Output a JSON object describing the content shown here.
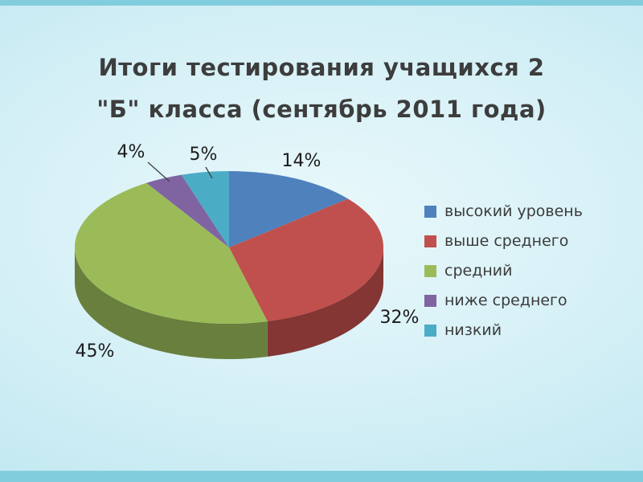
{
  "title": {
    "line1": "Итоги тестирования учащихся 2",
    "line2": "\"Б\" класса (сентябрь 2011 года)"
  },
  "chart_data": {
    "type": "pie",
    "style": "3d-pie",
    "title": "Итоги тестирования учащихся 2 \"Б\" класса (сентябрь 2011 года)",
    "labels": [
      "высокий уровень",
      "выше среднего",
      "средний",
      "ниже среднего",
      "низкий"
    ],
    "values": [
      14,
      32,
      45,
      4,
      5
    ],
    "data_labels": [
      "14%",
      "32%",
      "45%",
      "4%",
      "5%"
    ],
    "colors": [
      "#4F81BD",
      "#C0504D",
      "#9BBB59",
      "#8064A2",
      "#4BACC6"
    ],
    "legend_position": "right"
  },
  "theme": {
    "background_accent": "#82cddd",
    "title_color": "#3d3d3d",
    "label_color": "#1b1b1b"
  }
}
